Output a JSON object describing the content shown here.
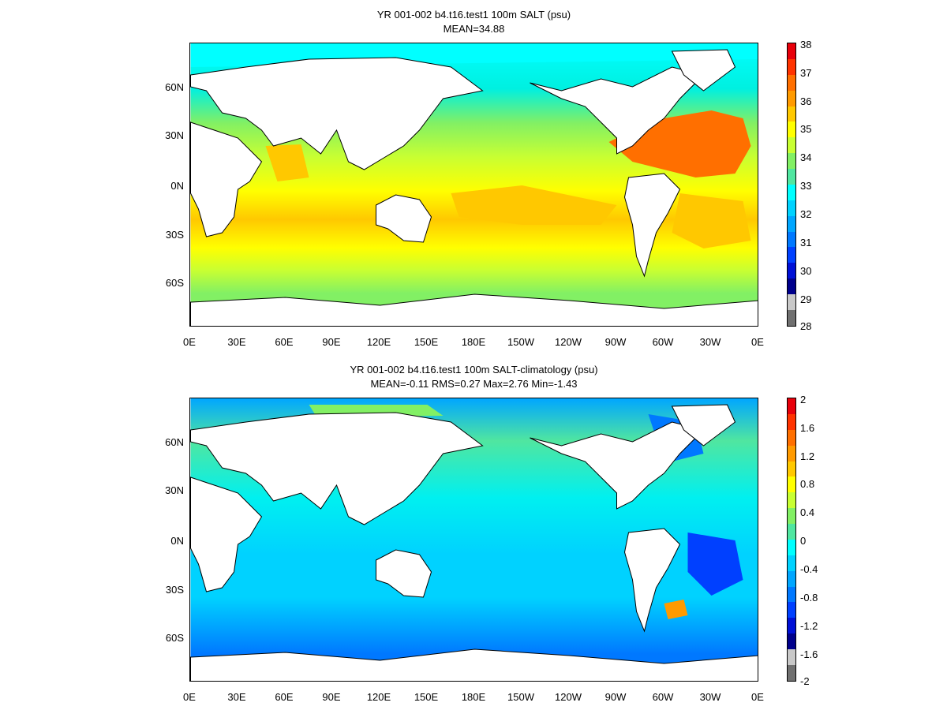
{
  "panels": [
    {
      "title_line1": "YR 001-002 b4.t16.test1 100m SALT (psu)",
      "title_line2": "MEAN=34.88",
      "variable": "salinity",
      "colorbar": {
        "labels": [
          "38",
          "37",
          "36",
          "35",
          "34",
          "33",
          "32",
          "31",
          "30",
          "29",
          "28"
        ],
        "colors": [
          "#e8000b",
          "#ff3300",
          "#ff6f00",
          "#ff9a00",
          "#ffc800",
          "#ffff00",
          "#c8ff32",
          "#82f064",
          "#50e6a0",
          "#00ffff",
          "#00d2ff",
          "#00a6ff",
          "#0078ff",
          "#0040ff",
          "#0010d6",
          "#00008c",
          "#c8c8c8",
          "#707070"
        ]
      }
    },
    {
      "title_line1": "YR 001-002 b4.t16.test1 100m SALT-climatology (psu)",
      "title_line2": "MEAN=-0.11   RMS=0.27   Max=2.76   Min=-1.43",
      "variable": "salinity_anomaly",
      "colorbar": {
        "labels": [
          "2",
          "1.6",
          "1.2",
          "0.8",
          "0.4",
          "0",
          "-0.4",
          "-0.8",
          "-1.2",
          "-1.6",
          "-2"
        ],
        "colors": [
          "#e8000b",
          "#ff3300",
          "#ff6f00",
          "#ff9a00",
          "#ffc800",
          "#ffff00",
          "#c8ff32",
          "#82f064",
          "#50e6a0",
          "#00ffff",
          "#00d2ff",
          "#00a6ff",
          "#0078ff",
          "#0040ff",
          "#0010d6",
          "#00008c",
          "#c8c8c8",
          "#707070"
        ]
      }
    }
  ],
  "lat_labels": [
    "60N",
    "30N",
    "0N",
    "30S",
    "60S"
  ],
  "lon_labels": [
    "0E",
    "30E",
    "60E",
    "90E",
    "120E",
    "150E",
    "180E",
    "150W",
    "120W",
    "90W",
    "60W",
    "30W",
    "0E"
  ]
}
